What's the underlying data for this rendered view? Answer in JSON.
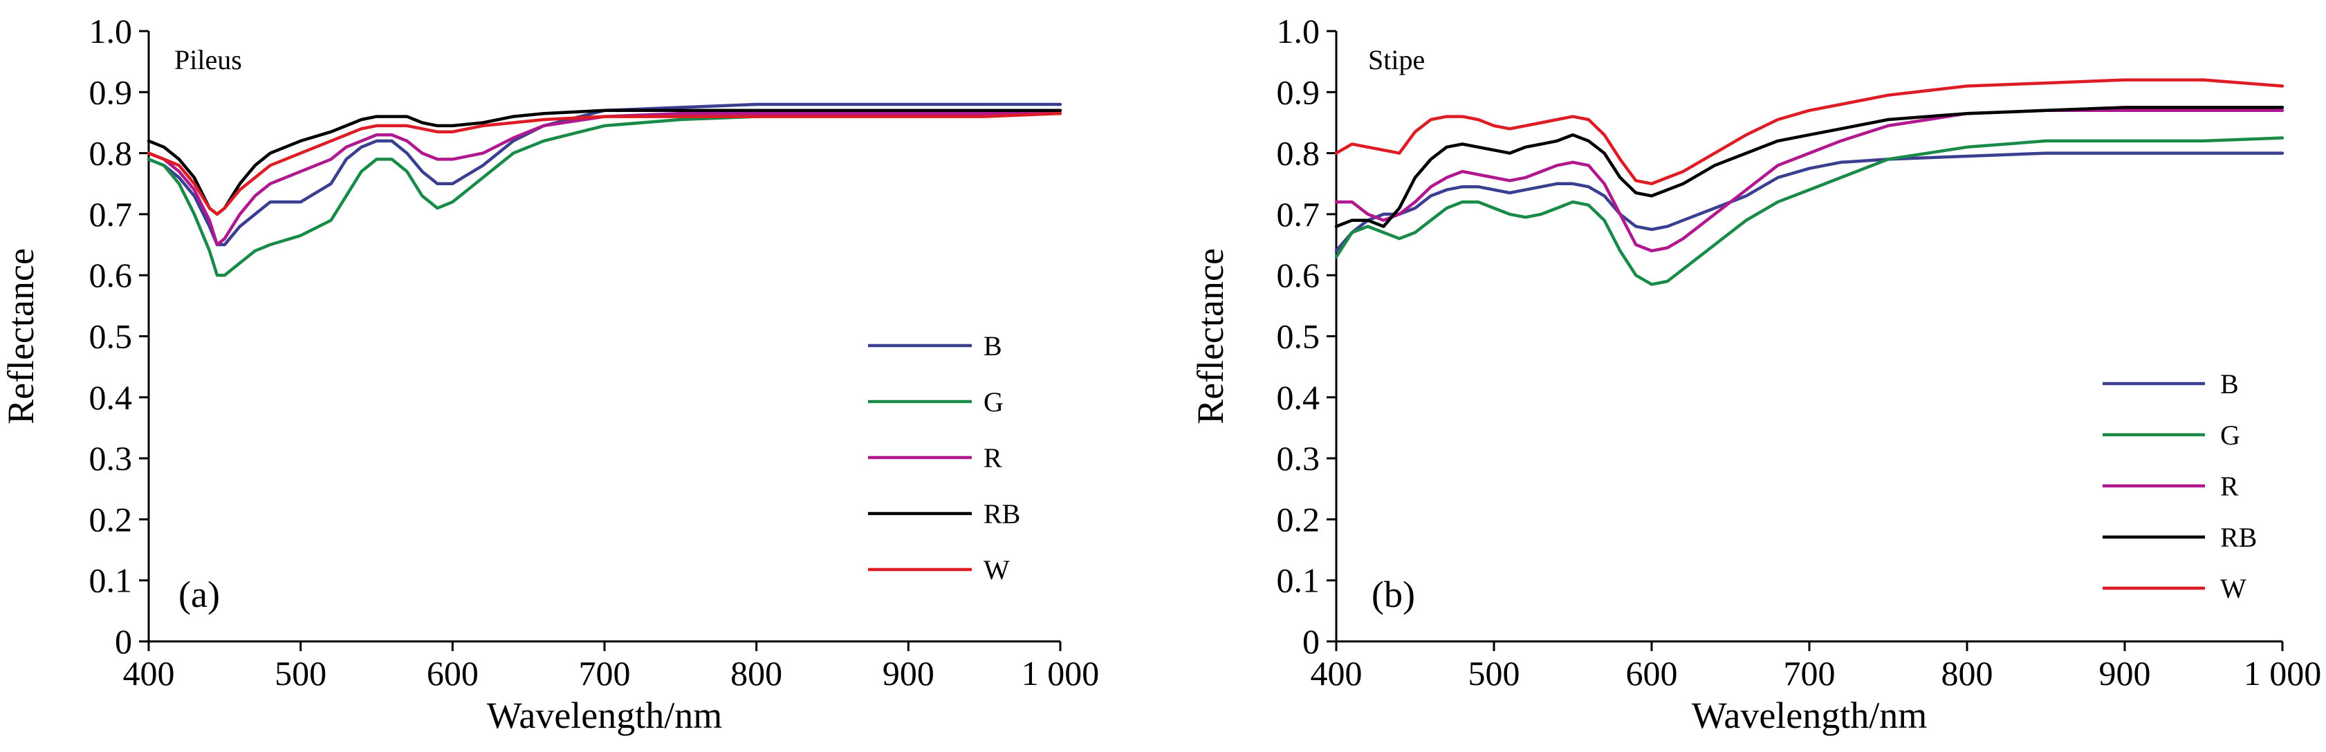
{
  "chart_data": [
    {
      "type": "line",
      "title": "Pileus",
      "panel_label": "(a)",
      "xlabel": "Wavelength/nm",
      "ylabel": "Reflectance",
      "xlim": [
        400,
        1000
      ],
      "ylim": [
        0,
        1.0
      ],
      "x_ticks": [
        400,
        500,
        600,
        700,
        800,
        900,
        1000
      ],
      "x_tick_labels": [
        "400",
        "500",
        "600",
        "700",
        "800",
        "900",
        "1 000"
      ],
      "y_ticks": [
        0,
        0.1,
        0.2,
        0.3,
        0.4,
        0.5,
        0.6,
        0.7,
        0.8,
        0.9,
        1.0
      ],
      "y_tick_labels": [
        "0",
        "0.1",
        "0.2",
        "0.3",
        "0.4",
        "0.5",
        "0.6",
        "0.7",
        "0.8",
        "0.9",
        "1.0"
      ],
      "grid": false,
      "legend_position": "lower-right",
      "x": [
        400,
        410,
        420,
        430,
        440,
        445,
        450,
        460,
        470,
        480,
        500,
        520,
        530,
        540,
        550,
        560,
        570,
        580,
        590,
        600,
        620,
        640,
        660,
        700,
        750,
        800,
        850,
        900,
        950,
        1000
      ],
      "series": [
        {
          "name": "B",
          "color": "#3b3f8f",
          "values": [
            0.79,
            0.78,
            0.76,
            0.73,
            0.68,
            0.65,
            0.65,
            0.68,
            0.7,
            0.72,
            0.72,
            0.75,
            0.79,
            0.81,
            0.82,
            0.82,
            0.8,
            0.77,
            0.75,
            0.75,
            0.78,
            0.82,
            0.845,
            0.87,
            0.875,
            0.88,
            0.88,
            0.88,
            0.88,
            0.88
          ]
        },
        {
          "name": "G",
          "color": "#1a8a48",
          "values": [
            0.79,
            0.78,
            0.75,
            0.7,
            0.64,
            0.6,
            0.6,
            0.62,
            0.64,
            0.65,
            0.665,
            0.69,
            0.73,
            0.77,
            0.79,
            0.79,
            0.77,
            0.73,
            0.71,
            0.72,
            0.76,
            0.8,
            0.82,
            0.845,
            0.855,
            0.86,
            0.865,
            0.865,
            0.865,
            0.87
          ]
        },
        {
          "name": "R",
          "color": "#b0188f",
          "values": [
            0.8,
            0.79,
            0.77,
            0.74,
            0.69,
            0.65,
            0.66,
            0.7,
            0.73,
            0.75,
            0.77,
            0.79,
            0.81,
            0.82,
            0.83,
            0.83,
            0.82,
            0.8,
            0.79,
            0.79,
            0.8,
            0.825,
            0.845,
            0.86,
            0.865,
            0.865,
            0.865,
            0.865,
            0.865,
            0.87
          ]
        },
        {
          "name": "RB",
          "color": "#000000",
          "values": [
            0.82,
            0.81,
            0.79,
            0.76,
            0.71,
            0.7,
            0.71,
            0.75,
            0.78,
            0.8,
            0.82,
            0.835,
            0.845,
            0.855,
            0.86,
            0.86,
            0.86,
            0.85,
            0.845,
            0.845,
            0.85,
            0.86,
            0.865,
            0.87,
            0.87,
            0.87,
            0.87,
            0.87,
            0.87,
            0.87
          ]
        },
        {
          "name": "W",
          "color": "#dd1d25",
          "values": [
            0.8,
            0.79,
            0.78,
            0.75,
            0.71,
            0.7,
            0.71,
            0.74,
            0.76,
            0.78,
            0.8,
            0.82,
            0.83,
            0.84,
            0.845,
            0.845,
            0.845,
            0.84,
            0.835,
            0.835,
            0.845,
            0.85,
            0.855,
            0.86,
            0.86,
            0.86,
            0.86,
            0.86,
            0.86,
            0.865
          ]
        }
      ]
    },
    {
      "type": "line",
      "title": "Stipe",
      "panel_label": "(b)",
      "xlabel": "Wavelength/nm",
      "ylabel": "Reflectance",
      "xlim": [
        400,
        1000
      ],
      "ylim": [
        0,
        1.0
      ],
      "x_ticks": [
        400,
        500,
        600,
        700,
        800,
        900,
        1000
      ],
      "x_tick_labels": [
        "400",
        "500",
        "600",
        "700",
        "800",
        "900",
        "1 000"
      ],
      "y_ticks": [
        0,
        0.1,
        0.2,
        0.3,
        0.4,
        0.5,
        0.6,
        0.7,
        0.8,
        0.9,
        1.0
      ],
      "y_tick_labels": [
        "0",
        "0.1",
        "0.2",
        "0.3",
        "0.4",
        "0.5",
        "0.6",
        "0.7",
        "0.8",
        "0.9",
        "1.0"
      ],
      "grid": false,
      "legend_position": "lower-right",
      "x": [
        400,
        410,
        420,
        430,
        440,
        450,
        460,
        470,
        480,
        490,
        500,
        510,
        520,
        530,
        540,
        550,
        560,
        570,
        580,
        590,
        600,
        610,
        620,
        640,
        660,
        680,
        700,
        720,
        750,
        800,
        850,
        900,
        950,
        1000
      ],
      "series": [
        {
          "name": "B",
          "color": "#3b3f8f",
          "values": [
            0.64,
            0.67,
            0.69,
            0.7,
            0.7,
            0.71,
            0.73,
            0.74,
            0.745,
            0.745,
            0.74,
            0.735,
            0.74,
            0.745,
            0.75,
            0.75,
            0.745,
            0.73,
            0.7,
            0.68,
            0.675,
            0.68,
            0.69,
            0.71,
            0.73,
            0.76,
            0.775,
            0.785,
            0.79,
            0.795,
            0.8,
            0.8,
            0.8,
            0.8
          ]
        },
        {
          "name": "G",
          "color": "#1a8a48",
          "values": [
            0.63,
            0.67,
            0.68,
            0.67,
            0.66,
            0.67,
            0.69,
            0.71,
            0.72,
            0.72,
            0.71,
            0.7,
            0.695,
            0.7,
            0.71,
            0.72,
            0.715,
            0.69,
            0.64,
            0.6,
            0.585,
            0.59,
            0.61,
            0.65,
            0.69,
            0.72,
            0.74,
            0.76,
            0.79,
            0.81,
            0.82,
            0.82,
            0.82,
            0.825
          ]
        },
        {
          "name": "R",
          "color": "#b0188f",
          "values": [
            0.72,
            0.72,
            0.7,
            0.69,
            0.7,
            0.72,
            0.745,
            0.76,
            0.77,
            0.765,
            0.76,
            0.755,
            0.76,
            0.77,
            0.78,
            0.785,
            0.78,
            0.75,
            0.7,
            0.65,
            0.64,
            0.645,
            0.66,
            0.7,
            0.74,
            0.78,
            0.8,
            0.82,
            0.845,
            0.865,
            0.87,
            0.87,
            0.87,
            0.87
          ]
        },
        {
          "name": "RB",
          "color": "#000000",
          "values": [
            0.68,
            0.69,
            0.69,
            0.68,
            0.71,
            0.76,
            0.79,
            0.81,
            0.815,
            0.81,
            0.805,
            0.8,
            0.81,
            0.815,
            0.82,
            0.83,
            0.82,
            0.8,
            0.76,
            0.735,
            0.73,
            0.74,
            0.75,
            0.78,
            0.8,
            0.82,
            0.83,
            0.84,
            0.855,
            0.865,
            0.87,
            0.875,
            0.875,
            0.875
          ]
        },
        {
          "name": "W",
          "color": "#dd1d25",
          "values": [
            0.8,
            0.815,
            0.81,
            0.805,
            0.8,
            0.835,
            0.855,
            0.86,
            0.86,
            0.855,
            0.845,
            0.84,
            0.845,
            0.85,
            0.855,
            0.86,
            0.855,
            0.83,
            0.79,
            0.755,
            0.75,
            0.76,
            0.77,
            0.8,
            0.83,
            0.855,
            0.87,
            0.88,
            0.895,
            0.91,
            0.915,
            0.92,
            0.92,
            0.91
          ]
        }
      ]
    }
  ]
}
